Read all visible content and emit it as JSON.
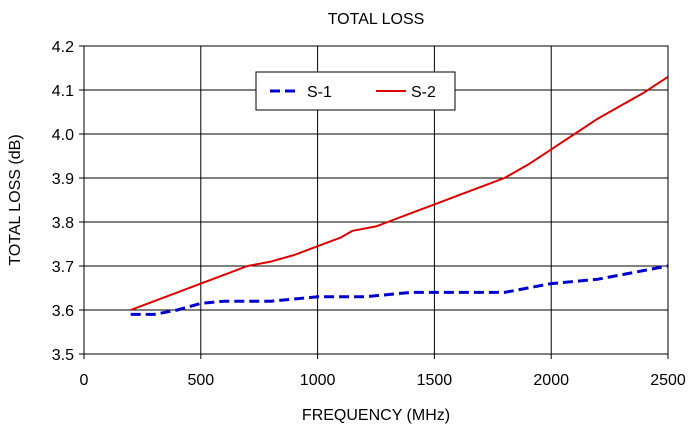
{
  "chart_data": {
    "type": "line",
    "title": "TOTAL LOSS",
    "xlabel": "FREQUENCY (MHz)",
    "ylabel": "TOTAL LOSS (dB)",
    "xlim": [
      0,
      2500
    ],
    "ylim": [
      3.5,
      4.2
    ],
    "xticks": [
      0,
      500,
      1000,
      1500,
      2000,
      2500
    ],
    "yticks": [
      3.5,
      3.6,
      3.7,
      3.8,
      3.9,
      4.0,
      4.1,
      4.2
    ],
    "xtick_labels": [
      "0",
      "500",
      "1000",
      "1500",
      "2000",
      "2500"
    ],
    "ytick_labels": [
      "3.5",
      "3.6",
      "3.7",
      "3.8",
      "3.9",
      "4.0",
      "4.1",
      "4.2"
    ],
    "grid": true,
    "legend_position": "top-center",
    "series": [
      {
        "name": "S-1",
        "color": "#0000cc",
        "style": "dashed",
        "x": [
          200,
          300,
          400,
          500,
          600,
          700,
          800,
          900,
          1000,
          1100,
          1200,
          1300,
          1400,
          1500,
          1600,
          1700,
          1800,
          1900,
          2000,
          2100,
          2200,
          2300,
          2400,
          2500
        ],
        "y": [
          3.59,
          3.59,
          3.6,
          3.615,
          3.62,
          3.62,
          3.62,
          3.625,
          3.63,
          3.63,
          3.63,
          3.635,
          3.64,
          3.64,
          3.64,
          3.64,
          3.64,
          3.65,
          3.66,
          3.665,
          3.67,
          3.68,
          3.69,
          3.7
        ]
      },
      {
        "name": "S-2",
        "color": "#dd0000",
        "style": "solid",
        "x": [
          200,
          300,
          400,
          500,
          600,
          700,
          800,
          900,
          1000,
          1100,
          1150,
          1250,
          1300,
          1400,
          1500,
          1600,
          1700,
          1800,
          1900,
          2000,
          2100,
          2200,
          2300,
          2400,
          2500
        ],
        "y": [
          3.6,
          3.62,
          3.64,
          3.66,
          3.68,
          3.7,
          3.71,
          3.725,
          3.745,
          3.765,
          3.78,
          3.79,
          3.8,
          3.82,
          3.84,
          3.86,
          3.88,
          3.9,
          3.93,
          3.965,
          4.0,
          4.035,
          4.065,
          4.095,
          4.13
        ]
      }
    ]
  }
}
